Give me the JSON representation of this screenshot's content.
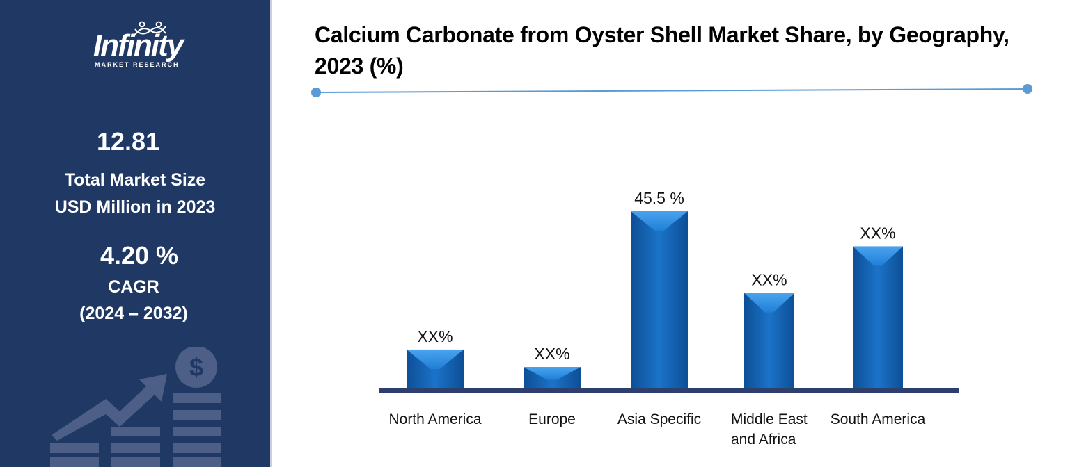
{
  "brand": {
    "name": "Infinity",
    "tagline": "MARKET RESEARCH"
  },
  "sidebar": {
    "market_size_value": "12.81",
    "market_size_label_line1": "Total Market Size",
    "market_size_label_line2": "USD Million in 2023",
    "cagr_value": "4.20 %",
    "cagr_label": "CAGR",
    "cagr_period": "(2024 – 2032)"
  },
  "colors": {
    "sidebar_bg": "#1f3864",
    "bar_dark": "#1565b8",
    "bar_light": "#2f8de0",
    "axis": "#2e3f6e",
    "rule": "#5b9bd5"
  },
  "icons": {
    "growth_graphic": "dollar-growth-chart-icon"
  },
  "chart_data": {
    "type": "bar",
    "title": "Calcium Carbonate from Oyster Shell Market Share, by Geography, 2023 (%)",
    "categories": [
      [
        "North America"
      ],
      [
        "Europe"
      ],
      [
        "Asia Specific"
      ],
      [
        "Middle East",
        "and Africa"
      ],
      [
        "South America"
      ]
    ],
    "values": [
      10,
      5.5,
      45.5,
      24.5,
      36.5
    ],
    "data_labels": [
      "XX%",
      "XX%",
      "45.5 %",
      "XX%",
      "XX%"
    ],
    "ylim": [
      0,
      50
    ],
    "grid": false,
    "legend": "none"
  }
}
